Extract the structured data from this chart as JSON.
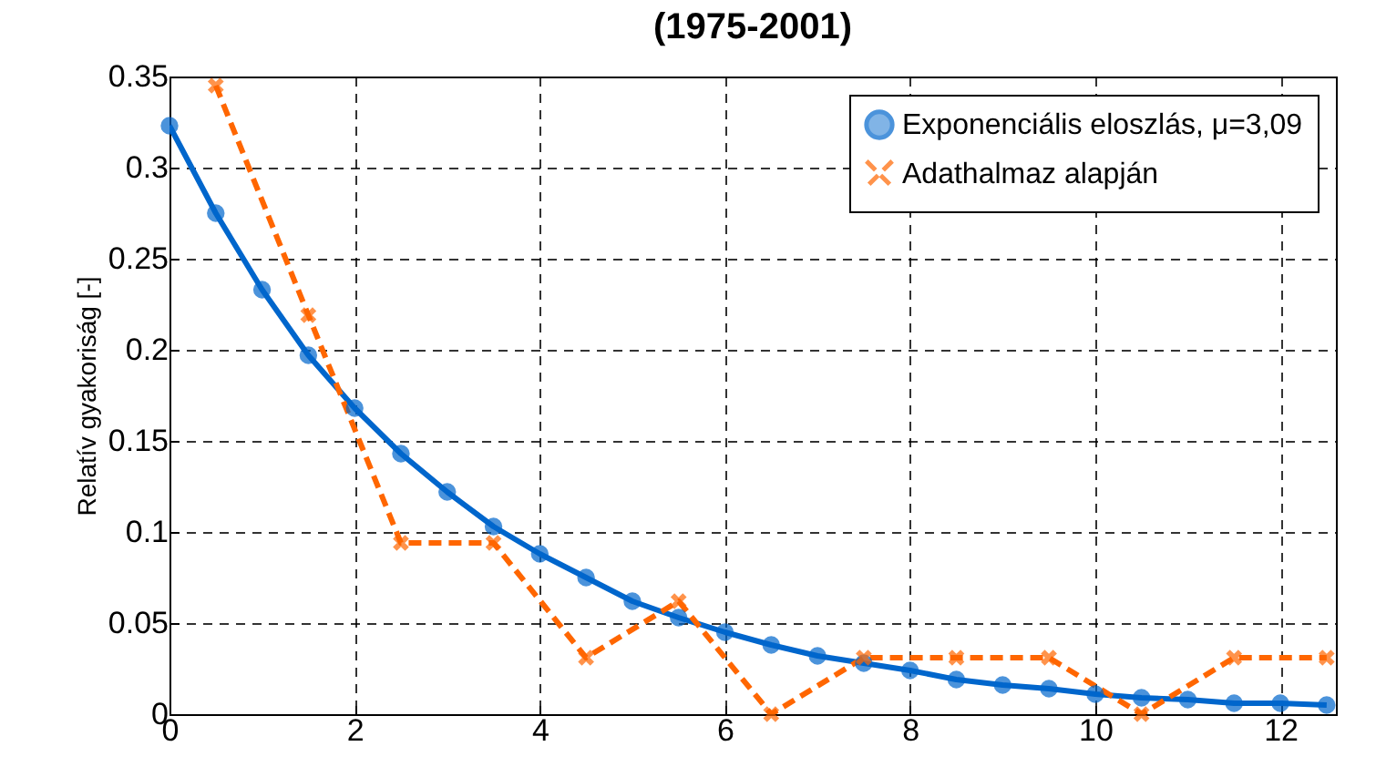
{
  "chart_data": {
    "type": "line",
    "title": "(1975-2001)",
    "ylabel": "Relatív gyakoriság [-]",
    "xlim": [
      0,
      12.6
    ],
    "xticks": [
      0,
      2,
      4,
      6,
      8,
      10,
      12
    ],
    "ylim": [
      0,
      0.35
    ],
    "yticks": [
      0,
      0.05,
      0.1,
      0.15,
      0.2,
      0.25,
      0.3,
      0.35
    ],
    "grid": true,
    "legend": "top right",
    "series": [
      {
        "name": "Exponenciális eloszlás, μ=3,09",
        "color": "#0066cc",
        "marker": "circle",
        "line_style": "solid",
        "x": [
          0,
          0.5,
          1,
          1.5,
          2,
          2.5,
          3,
          3.5,
          4,
          4.5,
          5,
          5.5,
          6,
          6.5,
          7,
          7.5,
          8,
          8.5,
          9,
          9.5,
          10,
          10.5,
          11,
          11.5,
          12,
          12.5
        ],
        "values": [
          0.323,
          0.275,
          0.233,
          0.197,
          0.168,
          0.143,
          0.122,
          0.103,
          0.088,
          0.075,
          0.062,
          0.053,
          0.045,
          0.038,
          0.032,
          0.028,
          0.024,
          0.019,
          0.016,
          0.014,
          0.011,
          0.009,
          0.008,
          0.006,
          0.006,
          0.005
        ]
      },
      {
        "name": "Adathalmaz alapján",
        "color": "#ff6600",
        "marker": "cross",
        "line_style": "dashed",
        "x": [
          0.5,
          1.5,
          2.5,
          3.5,
          4.5,
          5.5,
          6.5,
          7.5,
          8.5,
          9.5,
          10.5,
          11.5,
          12.5
        ],
        "values": [
          0.345,
          0.219,
          0.094,
          0.094,
          0.031,
          0.062,
          0,
          0.031,
          0.031,
          0.031,
          0,
          0.031,
          0.031
        ]
      }
    ]
  }
}
